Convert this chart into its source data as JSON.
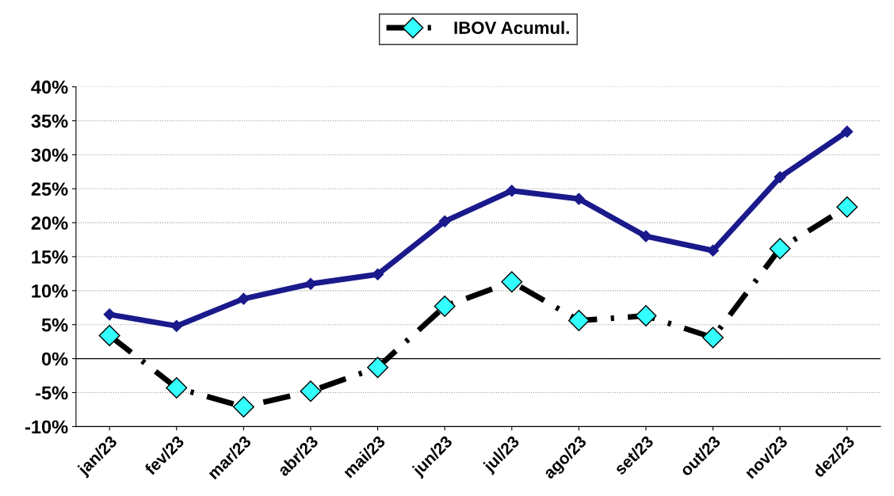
{
  "chart_data": {
    "type": "line",
    "categories": [
      "jan/23",
      "fev/23",
      "mar/23",
      "abr/23",
      "mai/23",
      "jun/23",
      "jul/23",
      "ago/23",
      "set/23",
      "out/23",
      "nov/23",
      "dez/23"
    ],
    "series": [
      {
        "color": "#1a1a8c",
        "marker": "diamond",
        "line_style": "solid",
        "values": [
          6.5,
          4.8,
          8.8,
          11.0,
          12.4,
          20.2,
          24.7,
          23.5,
          18.0,
          15.9,
          26.7,
          33.4
        ]
      },
      {
        "name": "IBOV Acumul.",
        "color": "#000000",
        "marker": "diamond",
        "line_style": "dashed",
        "values": [
          3.4,
          -4.3,
          -7.1,
          -4.8,
          -1.3,
          7.7,
          11.3,
          5.6,
          6.3,
          3.1,
          16.2,
          22.3
        ]
      }
    ],
    "ylim": [
      -10,
      40
    ],
    "yticks": [
      {
        "value": -10,
        "label": "-10%"
      },
      {
        "value": -5,
        "label": "-5%"
      },
      {
        "value": 0,
        "label": "0%"
      },
      {
        "value": 5,
        "label": "5%"
      },
      {
        "value": 10,
        "label": "10%"
      },
      {
        "value": 15,
        "label": "15%"
      },
      {
        "value": 20,
        "label": "20%"
      },
      {
        "value": 25,
        "label": "25%"
      },
      {
        "value": 30,
        "label": "30%"
      },
      {
        "value": 35,
        "label": "35%"
      },
      {
        "value": 40,
        "label": "40%"
      }
    ],
    "grid": "y",
    "legend": "top"
  }
}
